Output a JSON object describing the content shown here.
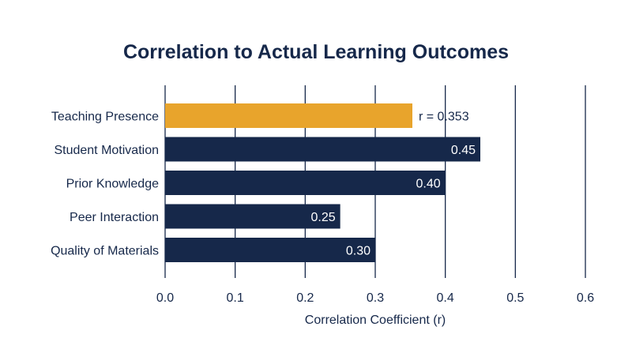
{
  "chart_data": {
    "type": "bar",
    "orientation": "horizontal",
    "title": "Correlation to Actual Learning Outcomes",
    "xlabel": "Correlation Coefficient (r)",
    "ylabel": "",
    "xlim": [
      0,
      0.6
    ],
    "xticks": [
      0.0,
      0.1,
      0.2,
      0.3,
      0.4,
      0.5,
      0.6
    ],
    "xtick_labels": [
      "0.0",
      "0.1",
      "0.2",
      "0.3",
      "0.4",
      "0.5",
      "0.6"
    ],
    "grid": "vertical",
    "categories": [
      "Teaching Presence",
      "Student Motivation",
      "Prior Knowledge",
      "Peer Interaction",
      "Quality of Materials"
    ],
    "values": [
      0.353,
      0.45,
      0.4,
      0.25,
      0.3
    ],
    "value_labels": [
      "r = 0.353",
      "0.45",
      "0.40",
      "0.25",
      "0.30"
    ],
    "highlight_index": 0,
    "colors": {
      "highlight": "#e8a42c",
      "bar": "#16284a",
      "grid": "#16284a",
      "text": "#16284a",
      "bar_label": "#ffffff"
    }
  }
}
